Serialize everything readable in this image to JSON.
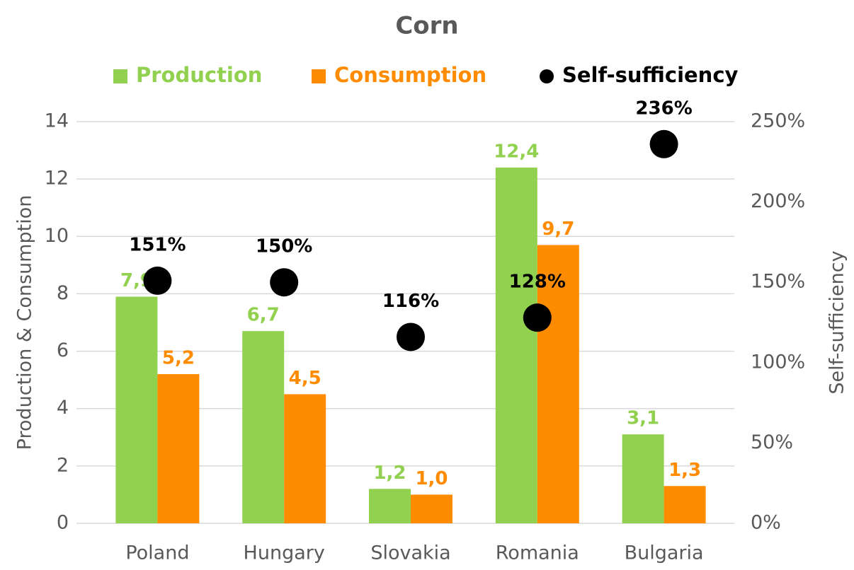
{
  "chart_data": {
    "type": "bar",
    "title": "Corn",
    "categories": [
      "Poland",
      "Hungary",
      "Slovakia",
      "Romania",
      "Bulgaria"
    ],
    "series": [
      {
        "name": "Production",
        "color": "#92d050",
        "values": [
          7.9,
          6.7,
          1.2,
          12.4,
          3.1
        ],
        "value_labels": [
          "7,9",
          "6,7",
          "1,2",
          "12,4",
          "3,1"
        ]
      },
      {
        "name": "Consumption",
        "color": "#ff8c00",
        "values": [
          5.2,
          4.5,
          1.0,
          9.7,
          1.3
        ],
        "value_labels": [
          "5,2",
          "4,5",
          "1,0",
          "9,7",
          "1,3"
        ]
      },
      {
        "name": "Self-sufficiency",
        "color": "#000000",
        "type": "scatter",
        "axis": "y2",
        "values": [
          151,
          150,
          116,
          128,
          236
        ],
        "value_labels": [
          "151%",
          "150%",
          "116%",
          "128%",
          "236%"
        ]
      }
    ],
    "ylabel": "Production & Consumption",
    "y2label": "Self-sufficiency",
    "ylim": [
      0,
      14
    ],
    "yticks": [
      0,
      2,
      4,
      6,
      8,
      10,
      12,
      14
    ],
    "y2lim": [
      0,
      250
    ],
    "y2ticks": [
      {
        "value": 0,
        "label": "0%"
      },
      {
        "value": 50,
        "label": "50%"
      },
      {
        "value": 100,
        "label": "100%"
      },
      {
        "value": 150,
        "label": "150%"
      },
      {
        "value": 200,
        "label": "200%"
      },
      {
        "value": 250,
        "label": "250%"
      }
    ],
    "grid": true,
    "legend": "top"
  }
}
